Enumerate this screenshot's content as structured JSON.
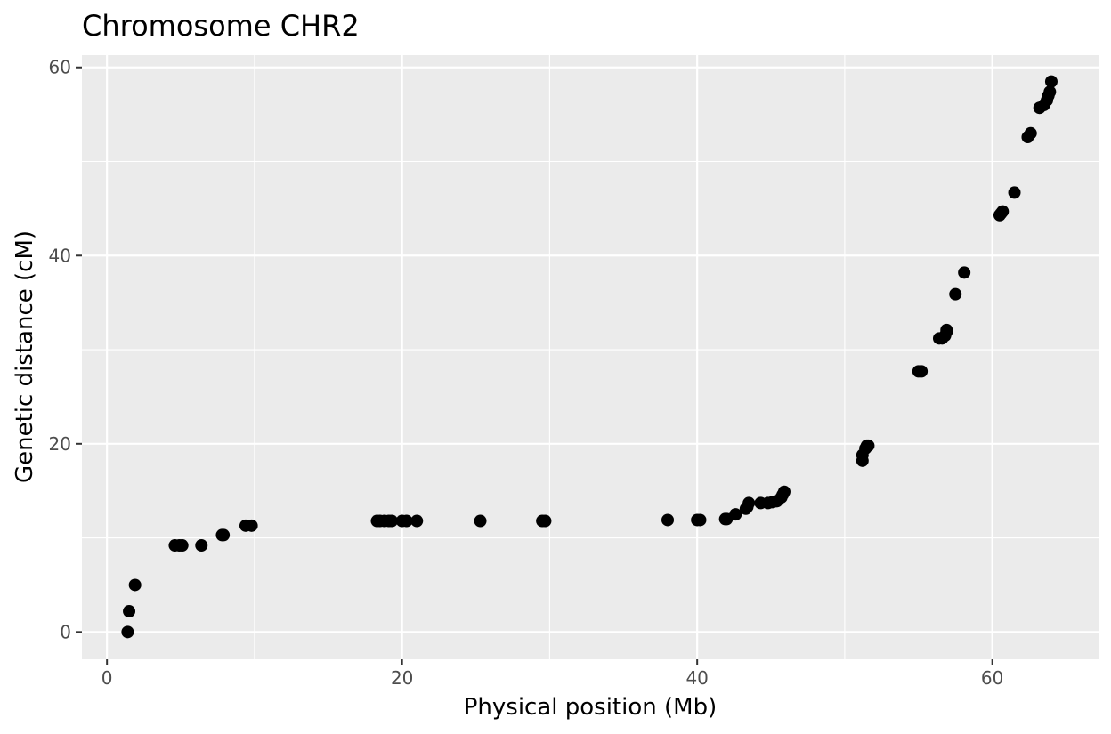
{
  "chart_data": {
    "type": "scatter",
    "title": "Chromosome CHR2",
    "xlabel": "Physical position (Mb)",
    "ylabel": "Genetic distance (cM)",
    "xlim": [
      -1.7,
      67.2
    ],
    "ylim": [
      -2.9,
      61.3
    ],
    "x_ticks": [
      0,
      20,
      40,
      60
    ],
    "y_ticks": [
      0,
      20,
      40,
      60
    ],
    "x_minor": [
      10,
      30,
      50
    ],
    "y_minor": [
      10,
      30,
      50
    ],
    "grid": true,
    "panel_background": "#ebebeb",
    "point_color": "#000000",
    "points": [
      [
        1.4,
        0.0
      ],
      [
        1.5,
        2.2
      ],
      [
        1.9,
        5.0
      ],
      [
        4.6,
        9.2
      ],
      [
        4.9,
        9.2
      ],
      [
        5.1,
        9.2
      ],
      [
        6.4,
        9.2
      ],
      [
        7.8,
        10.3
      ],
      [
        7.9,
        10.3
      ],
      [
        9.4,
        11.3
      ],
      [
        9.8,
        11.3
      ],
      [
        18.3,
        11.8
      ],
      [
        18.5,
        11.8
      ],
      [
        18.8,
        11.8
      ],
      [
        19.1,
        11.8
      ],
      [
        19.3,
        11.8
      ],
      [
        20.0,
        11.8
      ],
      [
        20.3,
        11.8
      ],
      [
        21.0,
        11.8
      ],
      [
        25.3,
        11.8
      ],
      [
        29.5,
        11.8
      ],
      [
        29.7,
        11.8
      ],
      [
        38.0,
        11.9
      ],
      [
        40.0,
        11.9
      ],
      [
        40.2,
        11.9
      ],
      [
        41.9,
        12.0
      ],
      [
        42.0,
        12.0
      ],
      [
        42.6,
        12.5
      ],
      [
        43.3,
        13.1
      ],
      [
        43.4,
        13.3
      ],
      [
        43.5,
        13.7
      ],
      [
        44.3,
        13.7
      ],
      [
        44.8,
        13.7
      ],
      [
        45.1,
        13.8
      ],
      [
        45.4,
        13.9
      ],
      [
        45.7,
        14.3
      ],
      [
        45.8,
        14.6
      ],
      [
        45.9,
        14.9
      ],
      [
        51.2,
        18.2
      ],
      [
        51.2,
        18.8
      ],
      [
        51.4,
        19.5
      ],
      [
        51.5,
        19.8
      ],
      [
        51.6,
        19.8
      ],
      [
        55.0,
        27.7
      ],
      [
        55.2,
        27.7
      ],
      [
        56.4,
        31.2
      ],
      [
        56.6,
        31.2
      ],
      [
        56.8,
        31.5
      ],
      [
        56.9,
        31.9
      ],
      [
        56.9,
        32.1
      ],
      [
        57.5,
        35.9
      ],
      [
        58.1,
        38.2
      ],
      [
        60.5,
        44.3
      ],
      [
        60.6,
        44.5
      ],
      [
        60.7,
        44.7
      ],
      [
        61.5,
        46.7
      ],
      [
        62.4,
        52.6
      ],
      [
        62.6,
        53.0
      ],
      [
        63.2,
        55.7
      ],
      [
        63.5,
        56.0
      ],
      [
        63.7,
        56.5
      ],
      [
        63.8,
        57.0
      ],
      [
        63.9,
        57.4
      ],
      [
        64.0,
        58.5
      ]
    ]
  }
}
